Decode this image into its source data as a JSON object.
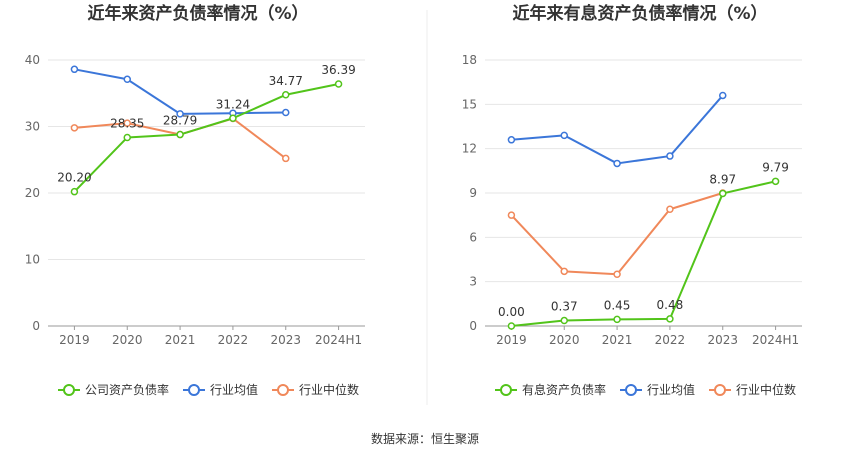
{
  "source": "数据来源：恒生聚源",
  "chart_data": [
    {
      "type": "line",
      "title": "近年来资产负债率情况（%）",
      "categories": [
        "2019",
        "2020",
        "2021",
        "2022",
        "2023",
        "2024H1"
      ],
      "ylim": [
        0,
        40
      ],
      "yticks": [
        "0",
        "10",
        "20",
        "30",
        "40"
      ],
      "grid": true,
      "legend": "bottom",
      "series": [
        {
          "name": "公司资产负债率",
          "color": "#52c41a",
          "values": [
            20.2,
            28.35,
            28.79,
            31.24,
            34.77,
            36.39
          ],
          "labels": [
            "20.20",
            "28.35",
            "28.79",
            "31.24",
            "34.77",
            "36.39"
          ]
        },
        {
          "name": "行业均值",
          "color": "#3b76d9",
          "values": [
            38.6,
            37.1,
            31.9,
            32.0,
            32.1,
            null
          ]
        },
        {
          "name": "行业中位数",
          "color": "#f0885a",
          "values": [
            29.8,
            30.5,
            28.8,
            31.2,
            25.2,
            null
          ]
        }
      ]
    },
    {
      "type": "line",
      "title": "近年来有息资产负债率情况（%）",
      "categories": [
        "2019",
        "2020",
        "2021",
        "2022",
        "2023",
        "2024H1"
      ],
      "ylim": [
        0,
        18
      ],
      "yticks": [
        "0",
        "3",
        "6",
        "9",
        "12",
        "15",
        "18"
      ],
      "grid": true,
      "legend": "bottom",
      "series": [
        {
          "name": "有息资产负债率",
          "color": "#52c41a",
          "values": [
            0.0,
            0.37,
            0.45,
            0.48,
            8.97,
            9.79
          ],
          "labels": [
            "0.00",
            "0.37",
            "0.45",
            "0.48",
            "8.97",
            "9.79"
          ]
        },
        {
          "name": "行业均值",
          "color": "#3b76d9",
          "values": [
            12.6,
            12.9,
            11.0,
            11.5,
            15.6,
            null
          ]
        },
        {
          "name": "行业中位数",
          "color": "#f0885a",
          "values": [
            7.5,
            3.7,
            3.5,
            7.9,
            9.0,
            null
          ]
        }
      ]
    }
  ]
}
